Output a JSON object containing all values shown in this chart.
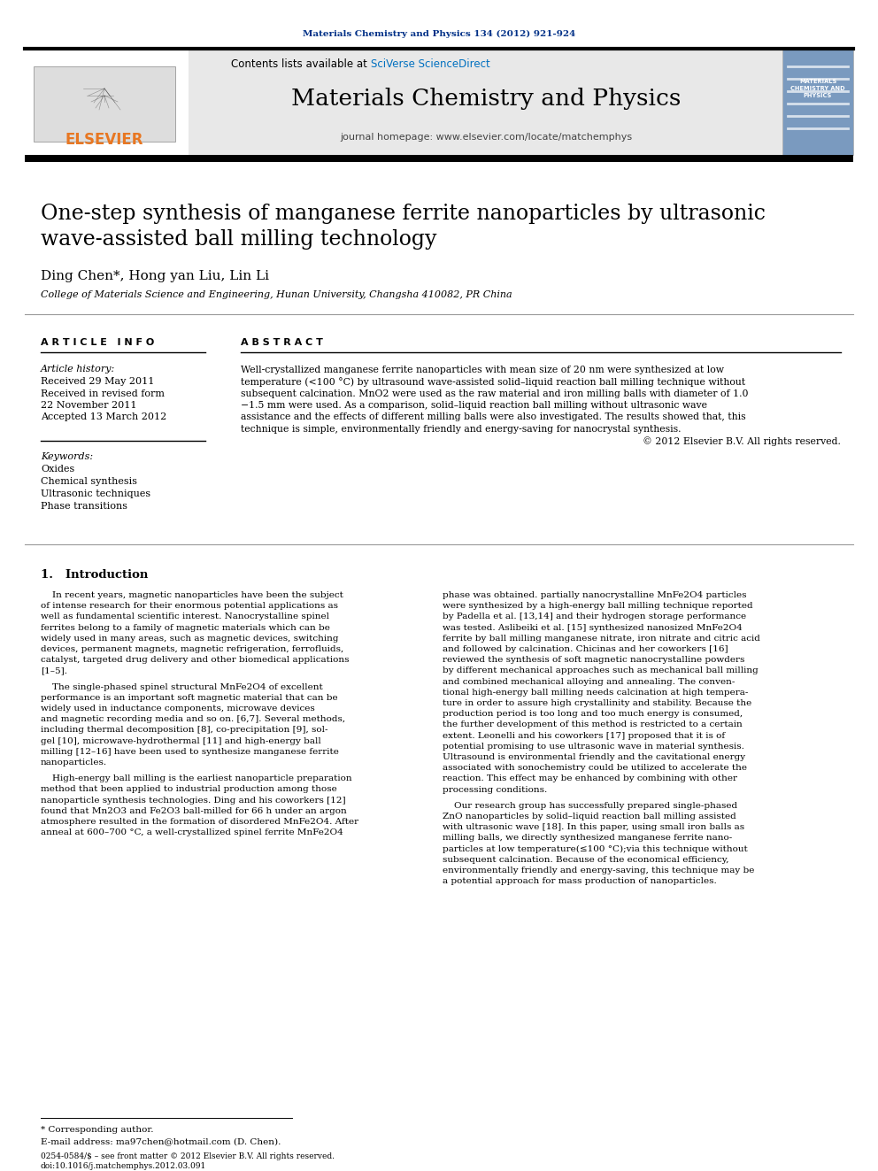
{
  "journal_ref": "Materials Chemistry and Physics 134 (2012) 921-924",
  "journal_title": "Materials Chemistry and Physics",
  "journal_homepage": "journal homepage: www.elsevier.com/locate/matchemphys",
  "contents_text": "Contents lists available at SciVerse ScienceDirect",
  "paper_title": "One-step synthesis of manganese ferrite nanoparticles by ultrasonic\nwave-assisted ball milling technology",
  "authors": "Ding Chen*, Hong yan Liu, Lin Li",
  "affiliation": "College of Materials Science and Engineering, Hunan University, Changsha 410082, PR China",
  "article_info_header": "A R T I C L E   I N F O",
  "abstract_header": "A B S T R A C T",
  "article_history_label": "Article history:",
  "received": "Received 29 May 2011",
  "revised_line1": "Received in revised form",
  "revised_line2": "22 November 2011",
  "accepted": "Accepted 13 March 2012",
  "keywords_label": "Keywords:",
  "keywords": [
    "Oxides",
    "Chemical synthesis",
    "Ultrasonic techniques",
    "Phase transitions"
  ],
  "abstract_text": "Well-crystallized manganese ferrite nanoparticles with mean size of 20 nm were synthesized at low\ntemperature (<100 °C) by ultrasound wave-assisted solid–liquid reaction ball milling technique without\nsubsequent calcination. MnO2 were used as the raw material and iron milling balls with diameter of 1.0\n−1.5 mm were used. As a comparison, solid–liquid reaction ball milling without ultrasonic wave\nassistance and the effects of different milling balls were also investigated. The results showed that, this\ntechnique is simple, environmentally friendly and energy-saving for nanocrystal synthesis.",
  "abstract_copyright": "© 2012 Elsevier B.V. All rights reserved.",
  "intro_header": "1.   Introduction",
  "intro_col1_paras": [
    "    In recent years, magnetic nanoparticles have been the subject\nof intense research for their enormous potential applications as\nwell as fundamental scientific interest. Nanocrystalline spinel\nferrites belong to a family of magnetic materials which can be\nwidely used in many areas, such as magnetic devices, switching\ndevices, permanent magnets, magnetic refrigeration, ferrofluids,\ncatalyst, targeted drug delivery and other biomedical applications\n[1–5].",
    "    The single-phased spinel structural MnFe2O4 of excellent\nperformance is an important soft magnetic material that can be\nwidely used in inductance components, microwave devices\nand magnetic recording media and so on. [6,7]. Several methods,\nincluding thermal decomposition [8], co-precipitation [9], sol-\ngel [10], microwave-hydrothermal [11] and high-energy ball\nmilling [12–16] have been used to synthesize manganese ferrite\nnanoparticles.",
    "    High-energy ball milling is the earliest nanoparticle preparation\nmethod that been applied to industrial production among those\nnanoparticle synthesis technologies. Ding and his coworkers [12]\nfound that Mn2O3 and Fe2O3 ball-milled for 66 h under an argon\natmosphere resulted in the formation of disordered MnFe2O4. After\nanneal at 600–700 °C, a well-crystallized spinel ferrite MnFe2O4"
  ],
  "intro_col2_paras": [
    "phase was obtained. partially nanocrystalline MnFe2O4 particles\nwere synthesized by a high-energy ball milling technique reported\nby Padella et al. [13,14] and their hydrogen storage performance\nwas tested. Aslibeiki et al. [15] synthesized nanosized MnFe2O4\nferrite by ball milling manganese nitrate, iron nitrate and citric acid\nand followed by calcination. Chicinas and her coworkers [16]\nreviewed the synthesis of soft magnetic nanocrystalline powders\nby different mechanical approaches such as mechanical ball milling\nand combined mechanical alloying and annealing. The conven-\ntional high-energy ball milling needs calcination at high tempera-\nture in order to assure high crystallinity and stability. Because the\nproduction period is too long and too much energy is consumed,\nthe further development of this method is restricted to a certain\nextent. Leonelli and his coworkers [17] proposed that it is of\npotential promising to use ultrasonic wave in material synthesis.\nUltrasound is environmental friendly and the cavitational energy\nassociated with sonochemistry could be utilized to accelerate the\nreaction. This effect may be enhanced by combining with other\nprocessing conditions.",
    "    Our research group has successfully prepared single-phased\nZnO nanoparticles by solid–liquid reaction ball milling assisted\nwith ultrasonic wave [18]. In this paper, using small iron balls as\nmilling balls, we directly synthesized manganese ferrite nano-\nparticles at low temperature(≤100 °C);via this technique without\nsubsequent calcination. Because of the economical efficiency,\nenvironmentally friendly and energy-saving, this technique may be\na potential approach for mass production of nanoparticles."
  ],
  "footnote_star": "* Corresponding author.",
  "footnote_email": "E-mail address: ma97chen@hotmail.com (D. Chen).",
  "footer_line1": "0254-0584/$ – see front matter © 2012 Elsevier B.V. All rights reserved.",
  "footer_line2": "doi:10.1016/j.matchemphys.2012.03.091",
  "orange_color": "#E87722",
  "blue_color": "#003087",
  "sciverse_color": "#0070C0",
  "header_bg": "#e8e8e8",
  "cover_bg": "#7a9abf"
}
